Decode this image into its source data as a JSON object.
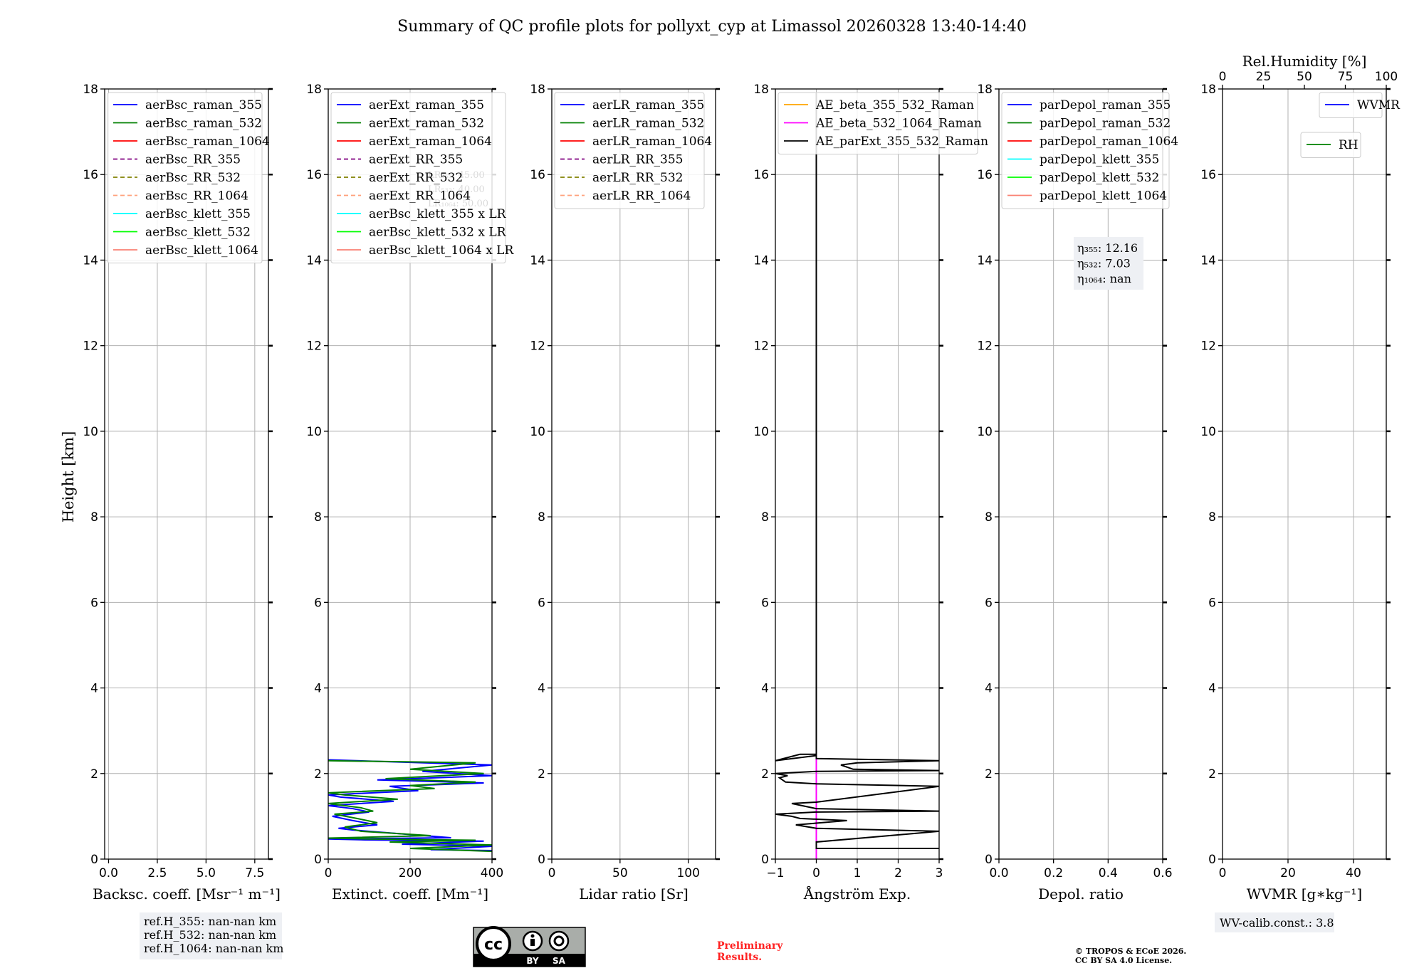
{
  "title": "Summary of QC profile plots for pollyxt_cyp at Limassol 20260328 13:40-14:40",
  "ylabel": "Height [km]",
  "colors": {
    "raman_355": "#0000ff",
    "raman_532": "#008000",
    "raman_1064": "#ff0000",
    "rr_355": "#800080",
    "rr_532": "#808000",
    "rr_1064": "#ffa07a",
    "klett_355": "#00ffff",
    "klett_532": "#00ff00",
    "klett_1064": "#fa8072",
    "ae_beta_355_532": "#ffa500",
    "ae_beta_532_1064": "#ff00ff",
    "ae_parext": "#000000",
    "wvmr": "#0000ff",
    "rh": "#008000"
  },
  "chart_data": [
    {
      "type": "line",
      "id": "bsc",
      "xlabel": "Backsc. coeff. [Msr⁻¹ m⁻¹]",
      "xlim": [
        -0.2,
        8.2
      ],
      "xticks": [
        0,
        2.5,
        5,
        7.5
      ],
      "xticklabels": [
        "0.0",
        "2.5",
        "5.0",
        "7.5"
      ],
      "ylim": [
        0,
        18
      ],
      "yticks": [
        0,
        2,
        4,
        6,
        8,
        10,
        12,
        14,
        16,
        18
      ],
      "yticklabels": [
        "0",
        "2",
        "4",
        "6",
        "8",
        "10",
        "12",
        "14",
        "16",
        "18"
      ],
      "legend": [
        {
          "label": "aerBsc_raman_355",
          "color": "raman_355",
          "dash": false
        },
        {
          "label": "aerBsc_raman_532",
          "color": "raman_532",
          "dash": false
        },
        {
          "label": "aerBsc_raman_1064",
          "color": "raman_1064",
          "dash": false
        },
        {
          "label": "aerBsc_RR_355",
          "color": "rr_355",
          "dash": true
        },
        {
          "label": "aerBsc_RR_532",
          "color": "rr_532",
          "dash": true
        },
        {
          "label": "aerBsc_RR_1064",
          "color": "rr_1064",
          "dash": true
        },
        {
          "label": "aerBsc_klett_355",
          "color": "klett_355",
          "dash": false
        },
        {
          "label": "aerBsc_klett_532",
          "color": "klett_532",
          "dash": false
        },
        {
          "label": "aerBsc_klett_1064",
          "color": "klett_1064",
          "dash": false
        }
      ],
      "series": []
    },
    {
      "type": "line",
      "id": "ext",
      "xlabel": "Extinct. coeff. [Mm⁻¹]",
      "xlim": [
        0,
        400
      ],
      "xticks": [
        0,
        200,
        400
      ],
      "xticklabels": [
        "0",
        "200",
        "400"
      ],
      "ylim": [
        0,
        18
      ],
      "yticks": [
        0,
        2,
        4,
        6,
        8,
        10,
        12,
        14,
        16,
        18
      ],
      "yticklabels": [
        "0",
        "2",
        "4",
        "6",
        "8",
        "10",
        "12",
        "14",
        "16",
        "18"
      ],
      "legend": [
        {
          "label": "aerExt_raman_355",
          "color": "raman_355",
          "dash": false
        },
        {
          "label": "aerExt_raman_532",
          "color": "raman_532",
          "dash": false
        },
        {
          "label": "aerExt_raman_1064",
          "color": "raman_1064",
          "dash": false
        },
        {
          "label": "aerExt_RR_355",
          "color": "rr_355",
          "dash": true
        },
        {
          "label": "aerExt_RR_532",
          "color": "rr_532",
          "dash": true
        },
        {
          "label": "aerExt_RR_1064",
          "color": "rr_1064",
          "dash": true
        },
        {
          "label": "aerBsc_klett_355 x LR",
          "color": "klett_355",
          "dash": false
        },
        {
          "label": "aerBsc_klett_532 x LR",
          "color": "klett_532",
          "dash": false
        },
        {
          "label": "aerBsc_klett_1064 x LR",
          "color": "klett_1064",
          "dash": false
        }
      ],
      "faint_text": [
        "LR₃₅₅: 45.00",
        "LR₅₃₂: 40.00",
        "LR₁₀₆₄: 50.00"
      ],
      "series": [
        {
          "name": "aerExt_raman_355",
          "color": "raman_355",
          "x": [
            400,
            250,
            400,
            180,
            380,
            90,
            0,
            300,
            60,
            25,
            120,
            60,
            10,
            100,
            60,
            0,
            160,
            30,
            0,
            220,
            150,
            380,
            120,
            400,
            230,
            400,
            0
          ],
          "y": [
            0.2,
            0.22,
            0.3,
            0.35,
            0.42,
            0.45,
            0.47,
            0.5,
            0.68,
            0.72,
            0.8,
            0.9,
            1.0,
            1.1,
            1.18,
            1.25,
            1.35,
            1.45,
            1.5,
            1.6,
            1.7,
            1.78,
            1.85,
            1.95,
            2.05,
            2.2,
            2.32
          ]
        },
        {
          "name": "aerExt_raman_532",
          "color": "raman_532",
          "x": [
            400,
            200,
            400,
            150,
            360,
            100,
            0,
            250,
            80,
            40,
            120,
            70,
            15,
            110,
            80,
            0,
            170,
            40,
            0,
            260,
            200,
            360,
            140,
            380,
            200,
            360,
            0
          ],
          "y": [
            0.18,
            0.25,
            0.33,
            0.4,
            0.44,
            0.47,
            0.49,
            0.55,
            0.65,
            0.75,
            0.85,
            0.95,
            1.05,
            1.12,
            1.2,
            1.3,
            1.4,
            1.5,
            1.55,
            1.65,
            1.72,
            1.8,
            1.88,
            2.0,
            2.1,
            2.25,
            2.3
          ]
        }
      ]
    },
    {
      "type": "line",
      "id": "lr",
      "xlabel": "Lidar ratio [Sr]",
      "xlim": [
        0,
        120
      ],
      "xticks": [
        0,
        50,
        100
      ],
      "xticklabels": [
        "0",
        "50",
        "100"
      ],
      "ylim": [
        0,
        18
      ],
      "yticks": [
        0,
        2,
        4,
        6,
        8,
        10,
        12,
        14,
        16,
        18
      ],
      "yticklabels": [
        "0",
        "2",
        "4",
        "6",
        "8",
        "10",
        "12",
        "14",
        "16",
        "18"
      ],
      "legend": [
        {
          "label": "aerLR_raman_355",
          "color": "raman_355",
          "dash": false
        },
        {
          "label": "aerLR_raman_532",
          "color": "raman_532",
          "dash": false
        },
        {
          "label": "aerLR_raman_1064",
          "color": "raman_1064",
          "dash": false
        },
        {
          "label": "aerLR_RR_355",
          "color": "rr_355",
          "dash": true
        },
        {
          "label": "aerLR_RR_532",
          "color": "rr_532",
          "dash": true
        },
        {
          "label": "aerLR_RR_1064",
          "color": "rr_1064",
          "dash": true
        }
      ],
      "series": []
    },
    {
      "type": "line",
      "id": "ae",
      "xlabel": "Ångström Exp.",
      "xlim": [
        -1,
        3
      ],
      "xticks": [
        -1,
        0,
        1,
        2,
        3
      ],
      "xticklabels": [
        "−1",
        "0",
        "1",
        "2",
        "3"
      ],
      "ylim": [
        0,
        18
      ],
      "yticks": [
        0,
        2,
        4,
        6,
        8,
        10,
        12,
        14,
        16,
        18
      ],
      "yticklabels": [
        "0",
        "2",
        "4",
        "6",
        "8",
        "10",
        "12",
        "14",
        "16",
        "18"
      ],
      "legend": [
        {
          "label": "AE_beta_355_532_Raman",
          "color": "ae_beta_355_532",
          "dash": false
        },
        {
          "label": "AE_beta_532_1064_Raman",
          "color": "ae_beta_532_1064",
          "dash": false
        },
        {
          "label": "AE_parExt_355_532_Raman",
          "color": "ae_parext",
          "dash": false
        }
      ],
      "series": [
        {
          "name": "AE_beta_532_1064_Raman",
          "color": "ae_beta_532_1064",
          "x": [
            0,
            0
          ],
          "y": [
            0,
            2.45
          ]
        },
        {
          "name": "AE_parExt_355_532_Raman",
          "color": "ae_parext",
          "x": [
            3,
            0,
            0,
            3,
            0,
            -0.5,
            0.75,
            -0.4,
            -0.6,
            -1,
            0,
            3,
            0,
            -0.6,
            0,
            3,
            0,
            -0.75,
            -0.9,
            -0.7,
            -1,
            0,
            3,
            0.9,
            0.6,
            1.0,
            3,
            0,
            0,
            -0.4,
            -1,
            0,
            0
          ],
          "y": [
            0.25,
            0.25,
            0.4,
            0.65,
            0.72,
            0.8,
            0.9,
            0.95,
            1.0,
            1.05,
            1.1,
            1.12,
            1.18,
            1.3,
            1.33,
            1.7,
            1.76,
            1.8,
            1.9,
            1.95,
            2.0,
            2.05,
            2.07,
            2.1,
            2.2,
            2.25,
            2.3,
            2.35,
            2.45,
            2.45,
            2.3,
            2.42,
            17.9
          ]
        }
      ]
    },
    {
      "type": "line",
      "id": "depol",
      "xlabel": "Depol. ratio",
      "xlim": [
        0,
        0.6
      ],
      "xticks": [
        0,
        0.2,
        0.4,
        0.6
      ],
      "xticklabels": [
        "0.0",
        "0.2",
        "0.4",
        "0.6"
      ],
      "ylim": [
        0,
        18
      ],
      "yticks": [
        0,
        2,
        4,
        6,
        8,
        10,
        12,
        14,
        16,
        18
      ],
      "yticklabels": [
        "0",
        "2",
        "4",
        "6",
        "8",
        "10",
        "12",
        "14",
        "16",
        "18"
      ],
      "legend": [
        {
          "label": "parDepol_raman_355",
          "color": "raman_355",
          "dash": false
        },
        {
          "label": "parDepol_raman_532",
          "color": "raman_532",
          "dash": false
        },
        {
          "label": "parDepol_raman_1064",
          "color": "raman_1064",
          "dash": false
        },
        {
          "label": "parDepol_klett_355",
          "color": "klett_355",
          "dash": false
        },
        {
          "label": "parDepol_klett_532",
          "color": "klett_532",
          "dash": false
        },
        {
          "label": "parDepol_klett_1064",
          "color": "klett_1064",
          "dash": false
        }
      ],
      "eta": [
        "η₃₅₅: 12.16",
        "η₅₃₂: 7.03",
        "η₁₀₆₄: nan"
      ],
      "series": []
    },
    {
      "type": "line",
      "id": "wv",
      "xlabel": "WVMR [g∗kg⁻¹]",
      "xlim": [
        0,
        50
      ],
      "xticks": [
        0,
        20,
        40
      ],
      "xticklabels": [
        "0",
        "20",
        "40"
      ],
      "x2label": "Rel.Humidity [%]",
      "x2lim": [
        0,
        100
      ],
      "x2ticks": [
        0,
        25,
        50,
        75,
        100
      ],
      "x2ticklabels": [
        "0",
        "25",
        "50",
        "75",
        "100"
      ],
      "ylim": [
        0,
        18
      ],
      "yticks": [
        0,
        2,
        4,
        6,
        8,
        10,
        12,
        14,
        16,
        18
      ],
      "yticklabels": [
        "0",
        "2",
        "4",
        "6",
        "8",
        "10",
        "12",
        "14",
        "16",
        "18"
      ],
      "legend": [
        {
          "label": "WVMR",
          "color": "wvmr",
          "dash": false
        }
      ],
      "legend2": [
        {
          "label": "RH",
          "color": "rh",
          "dash": false
        }
      ],
      "series": []
    }
  ],
  "annotations": {
    "refh": [
      "ref.H_355: nan-nan km",
      "ref.H_532: nan-nan km",
      "ref.H_1064: nan-nan km"
    ],
    "wv_calib": "WV-calib.const.: 3.8",
    "preliminary": [
      "Preliminary",
      "Results."
    ],
    "copyright": [
      "© TROPOS & ECoE 2026.",
      "CC BY SA 4.0 License."
    ],
    "license_by": "BY",
    "license_sa": "SA",
    "license_cc": "cc"
  }
}
